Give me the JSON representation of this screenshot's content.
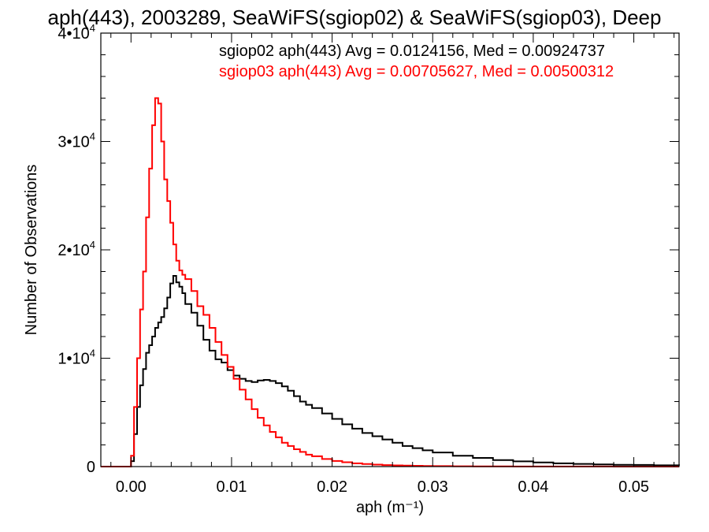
{
  "chart_data": {
    "type": "line",
    "title": "aph(443), 2003289, SeaWiFS(sgiop02) & SeaWiFS(sgiop03), Deep",
    "xlabel": "aph (m⁻¹)",
    "ylabel": "Number of Observations",
    "xlim": [
      -0.003,
      0.0545
    ],
    "ylim": [
      0,
      40000
    ],
    "x_ticks": [
      {
        "value": 0.0,
        "label": "0.00"
      },
      {
        "value": 0.01,
        "label": "0.01"
      },
      {
        "value": 0.02,
        "label": "0.02"
      },
      {
        "value": 0.03,
        "label": "0.03"
      },
      {
        "value": 0.04,
        "label": "0.04"
      },
      {
        "value": 0.05,
        "label": "0.05"
      }
    ],
    "y_ticks": [
      {
        "value": 0,
        "mantissa": "0",
        "exponent": ""
      },
      {
        "value": 10000,
        "mantissa": "1•10",
        "exponent": "4"
      },
      {
        "value": 20000,
        "mantissa": "2•10",
        "exponent": "4"
      },
      {
        "value": 30000,
        "mantissa": "3•10",
        "exponent": "4"
      },
      {
        "value": 40000,
        "mantissa": "4•10",
        "exponent": "4"
      }
    ],
    "grid": false,
    "legend_position": "top-right",
    "series": [
      {
        "label": "sgiop02 aph(443) Avg = 0.0124156, Med = 0.00924737",
        "color": "#000000",
        "x": [
          -0.003,
          -0.0005,
          0.0,
          0.0003,
          0.0006,
          0.0009,
          0.0012,
          0.0015,
          0.0018,
          0.0021,
          0.0024,
          0.0027,
          0.003,
          0.0033,
          0.0036,
          0.0039,
          0.0042,
          0.0045,
          0.0048,
          0.0051,
          0.0054,
          0.006,
          0.0066,
          0.0072,
          0.0078,
          0.0084,
          0.009,
          0.0096,
          0.0102,
          0.0108,
          0.0114,
          0.012,
          0.0126,
          0.0132,
          0.0138,
          0.0144,
          0.015,
          0.0156,
          0.0162,
          0.0168,
          0.0174,
          0.018,
          0.019,
          0.02,
          0.021,
          0.022,
          0.023,
          0.024,
          0.025,
          0.026,
          0.027,
          0.028,
          0.029,
          0.03,
          0.032,
          0.034,
          0.036,
          0.038,
          0.04,
          0.042,
          0.044,
          0.046,
          0.048,
          0.05,
          0.052,
          0.0545
        ],
        "y": [
          0,
          0,
          500,
          3000,
          5500,
          7500,
          9000,
          10500,
          11200,
          12000,
          12800,
          13300,
          13800,
          14600,
          15600,
          16900,
          17600,
          17000,
          16600,
          16000,
          15000,
          14200,
          13000,
          11700,
          10700,
          9900,
          9600,
          8900,
          8400,
          8100,
          7900,
          7800,
          7950,
          8000,
          7900,
          7700,
          7400,
          7000,
          6500,
          6000,
          5700,
          5400,
          4900,
          4400,
          3900,
          3500,
          3100,
          2800,
          2500,
          2200,
          1900,
          1700,
          1500,
          1300,
          1000,
          800,
          600,
          480,
          380,
          300,
          250,
          200,
          170,
          150,
          120,
          100
        ]
      },
      {
        "label": "sgiop03 aph(443) Avg = 0.00705627, Med = 0.00500312",
        "color": "#ff0000",
        "x": [
          -0.003,
          -0.0005,
          0.0,
          0.0003,
          0.0006,
          0.0009,
          0.0012,
          0.0015,
          0.0018,
          0.0021,
          0.0024,
          0.0027,
          0.003,
          0.0033,
          0.0036,
          0.0039,
          0.0042,
          0.0045,
          0.0048,
          0.0051,
          0.0054,
          0.006,
          0.0066,
          0.0072,
          0.0078,
          0.0084,
          0.009,
          0.0096,
          0.0102,
          0.0108,
          0.0114,
          0.012,
          0.0126,
          0.0132,
          0.0138,
          0.0144,
          0.015,
          0.0156,
          0.0162,
          0.0168,
          0.0174,
          0.018,
          0.019,
          0.02,
          0.021,
          0.022,
          0.023,
          0.024,
          0.025,
          0.026,
          0.027,
          0.028,
          0.029,
          0.03,
          0.032,
          0.034,
          0.036,
          0.038,
          0.04,
          0.042,
          0.044,
          0.046,
          0.048,
          0.05,
          0.052,
          0.0545
        ],
        "y": [
          0,
          0,
          1000,
          5500,
          10000,
          14500,
          18000,
          23000,
          27500,
          31500,
          34000,
          33500,
          30000,
          26500,
          24500,
          22500,
          20500,
          19000,
          18100,
          17700,
          17300,
          16200,
          14800,
          14000,
          12800,
          11500,
          10300,
          9200,
          8100,
          7100,
          6200,
          5300,
          4500,
          3800,
          3200,
          2700,
          2200,
          1900,
          1600,
          1350,
          1100,
          950,
          700,
          520,
          400,
          300,
          230,
          180,
          140,
          110,
          90,
          70,
          55,
          45,
          30,
          20,
          15,
          10,
          8,
          6,
          5,
          4,
          3,
          2,
          2,
          1
        ]
      }
    ]
  }
}
